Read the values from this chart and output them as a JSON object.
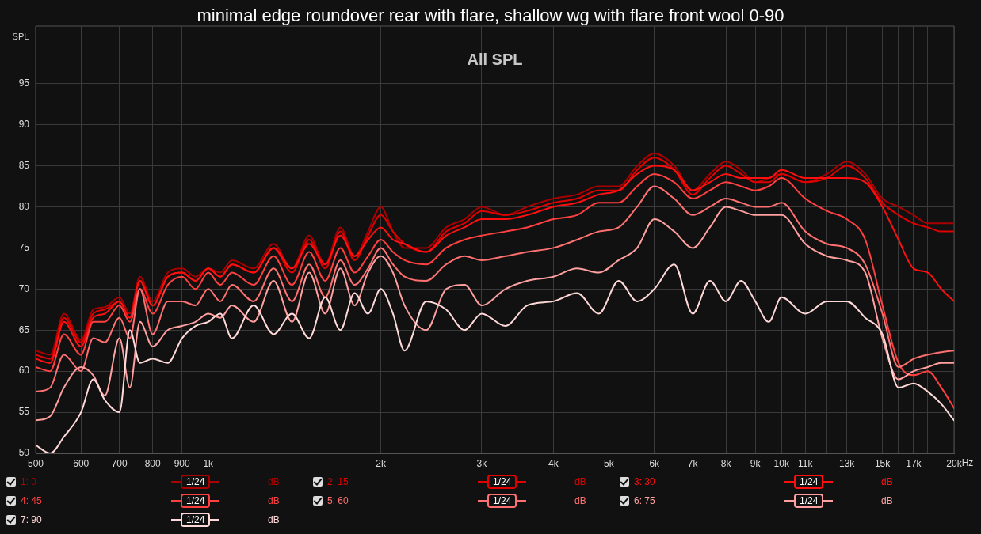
{
  "chart_data": {
    "type": "line",
    "title": "minimal edge roundover rear with flare, shallow wg with flare front wool 0-90",
    "subtitle": "All SPL",
    "ylabel": "SPL",
    "xlabel": "Hz",
    "log": "x",
    "grid": true,
    "legend": "bottom",
    "marker": "none",
    "line_style": "solid",
    "xlim": [
      500,
      20000
    ],
    "ylim": [
      50,
      102
    ],
    "xticks": [
      500,
      600,
      700,
      800,
      900,
      {
        "value": 1000,
        "label": "1k"
      },
      {
        "value": 2000,
        "label": "2k"
      },
      {
        "value": 3000,
        "label": "3k"
      },
      {
        "value": 4000,
        "label": "4k"
      },
      {
        "value": 5000,
        "label": "5k"
      },
      {
        "value": 6000,
        "label": "6k"
      },
      {
        "value": 7000,
        "label": "7k"
      },
      {
        "value": 8000,
        "label": "8k"
      },
      {
        "value": 9000,
        "label": "9k"
      },
      {
        "value": 10000,
        "label": "10k"
      },
      {
        "value": 11000,
        "label": "11k"
      },
      {
        "value": 12000,
        "label": null
      },
      {
        "value": 13000,
        "label": "13k"
      },
      {
        "value": 14000,
        "label": null
      },
      {
        "value": 15000,
        "label": "15k"
      },
      {
        "value": 16000,
        "label": null
      },
      {
        "value": 17000,
        "label": "17k"
      },
      {
        "value": 18000,
        "label": null
      },
      {
        "value": 19000,
        "label": null
      },
      {
        "value": 20000,
        "label": "20k"
      }
    ],
    "yticks": [
      50,
      55,
      60,
      65,
      70,
      75,
      80,
      85,
      90,
      95
    ],
    "x": [
      500,
      530,
      560,
      600,
      630,
      660,
      700,
      730,
      760,
      800,
      850,
      900,
      950,
      1000,
      1050,
      1100,
      1200,
      1300,
      1400,
      1500,
      1600,
      1700,
      1800,
      1900,
      2000,
      2100,
      2200,
      2400,
      2600,
      2800,
      3000,
      3300,
      3600,
      4000,
      4400,
      4800,
      5200,
      5600,
      6000,
      6500,
      7000,
      7500,
      8000,
      8500,
      9000,
      9500,
      10000,
      11000,
      12000,
      13000,
      14000,
      15000,
      16000,
      17000,
      18000,
      19000,
      20000
    ],
    "series": [
      {
        "name": "1: 0",
        "color": "#a80000",
        "values": [
          62.5,
          62,
          67,
          63.8,
          67.5,
          67.8,
          69,
          67,
          71.5,
          68.5,
          72,
          72.5,
          71.5,
          72.5,
          72,
          73.5,
          72.5,
          75.5,
          72.5,
          76.5,
          73,
          77.5,
          74,
          77,
          80,
          77,
          75,
          75,
          77.5,
          78.5,
          80,
          79,
          80,
          81,
          81.5,
          82.5,
          82.5,
          85,
          86.5,
          85,
          82,
          84,
          85.5,
          84.5,
          83,
          83.5,
          84,
          83,
          84,
          85.5,
          84,
          81,
          80,
          79,
          78,
          78,
          78
        ]
      },
      {
        "name": "2: 15",
        "color": "#e00000",
        "values": [
          62,
          61.5,
          66.5,
          63.5,
          67,
          67.5,
          68.5,
          66.5,
          71,
          68,
          71.5,
          72,
          71,
          72.5,
          71.5,
          73,
          72,
          75,
          72,
          76,
          72.5,
          77,
          73.5,
          76.5,
          79,
          77,
          75.5,
          74.5,
          77,
          78,
          79.5,
          79,
          79.5,
          80.5,
          81,
          82,
          82,
          84.5,
          86,
          84.5,
          81.5,
          83.5,
          85,
          84,
          83,
          83,
          84,
          83,
          83.5,
          85,
          83.5,
          80.5,
          79,
          78,
          77.5,
          77,
          77
        ]
      },
      {
        "name": "3: 30",
        "color": "#ff1010",
        "values": [
          61.5,
          61,
          66,
          63,
          66.5,
          67,
          68.5,
          66.5,
          71,
          68,
          71.5,
          72,
          71,
          72.5,
          71.5,
          73,
          72,
          75,
          72.5,
          75.5,
          73,
          76.5,
          74,
          76,
          77.5,
          76,
          75.5,
          74.5,
          76.5,
          77.5,
          78.5,
          78.5,
          79,
          80,
          80.5,
          81.5,
          82,
          84,
          85,
          84.5,
          82,
          83,
          84,
          83.5,
          83.5,
          83.5,
          84.5,
          83.5,
          83.5,
          83.5,
          83,
          80,
          76,
          72.5,
          72,
          70,
          68.5
        ]
      },
      {
        "name": "4: 45",
        "color": "#ff4040",
        "values": [
          60.5,
          60,
          64.5,
          62,
          66,
          66,
          68,
          66,
          70,
          67,
          70.5,
          71.5,
          70,
          72,
          70.5,
          72,
          70.5,
          74,
          70.5,
          74.5,
          71,
          75,
          72,
          74,
          76,
          74.5,
          73.5,
          73,
          75,
          76,
          76.5,
          77,
          77.5,
          78.5,
          79,
          80.5,
          80.5,
          82.5,
          84,
          83,
          81,
          82,
          83,
          82.5,
          82,
          82.5,
          83.5,
          81,
          79.5,
          78.5,
          76,
          68,
          61,
          59.5,
          60,
          58,
          55.5
        ]
      },
      {
        "name": "5: 60",
        "color": "#ff7070",
        "values": [
          57.5,
          58,
          62,
          60,
          64,
          63.5,
          66.5,
          64,
          70,
          64.5,
          68.5,
          68.5,
          68,
          70,
          68.5,
          70.5,
          68.5,
          72.5,
          68.5,
          73,
          69,
          73.5,
          70.5,
          72.5,
          75,
          73,
          71.5,
          71,
          73,
          74,
          73.5,
          74,
          74.5,
          75,
          76,
          77,
          77.5,
          80,
          82.5,
          81,
          79,
          80,
          81,
          80.5,
          80,
          80,
          80.5,
          77,
          75.5,
          75,
          73,
          67,
          60.5,
          61.5,
          62,
          62.3,
          62.5
        ]
      },
      {
        "name": "6: 75",
        "color": "#ffa0a0",
        "values": [
          54,
          54.5,
          58,
          60.5,
          59.5,
          57,
          64,
          58,
          66,
          63,
          65,
          65.5,
          66,
          67,
          66.5,
          68,
          66,
          71,
          66,
          72,
          67,
          72.5,
          68,
          72,
          74,
          72,
          68,
          65,
          70,
          70.5,
          68,
          70,
          71,
          71.5,
          72.5,
          72,
          73.5,
          75,
          78.5,
          77,
          75,
          77.5,
          80,
          79.5,
          79,
          79,
          79,
          75.5,
          74,
          73.5,
          72,
          64,
          59,
          60,
          60.5,
          61,
          61
        ]
      },
      {
        "name": "7: 90",
        "color": "#ffd8d8",
        "values": [
          51,
          50,
          52,
          55,
          59,
          56.5,
          55,
          65,
          61,
          61.5,
          61,
          64,
          65.5,
          66,
          67,
          64,
          68,
          64.5,
          67,
          64,
          69,
          65,
          69.5,
          67,
          70,
          67,
          62.5,
          68.5,
          67.5,
          65,
          67,
          65.5,
          68,
          68.5,
          69.5,
          67,
          71,
          68.5,
          70,
          73,
          67,
          71,
          68.5,
          71,
          68.5,
          66,
          69,
          67,
          68.5,
          68.5,
          66.5,
          64.5,
          58,
          58.5,
          57.5,
          56,
          54
        ]
      }
    ],
    "annotations": [
      "1/24",
      "dB",
      "1/24",
      "dB",
      "1/24",
      "dB",
      "1/24",
      "dB",
      "1/24",
      "dB",
      "1/24",
      "dB",
      "1/24",
      "dB"
    ]
  }
}
